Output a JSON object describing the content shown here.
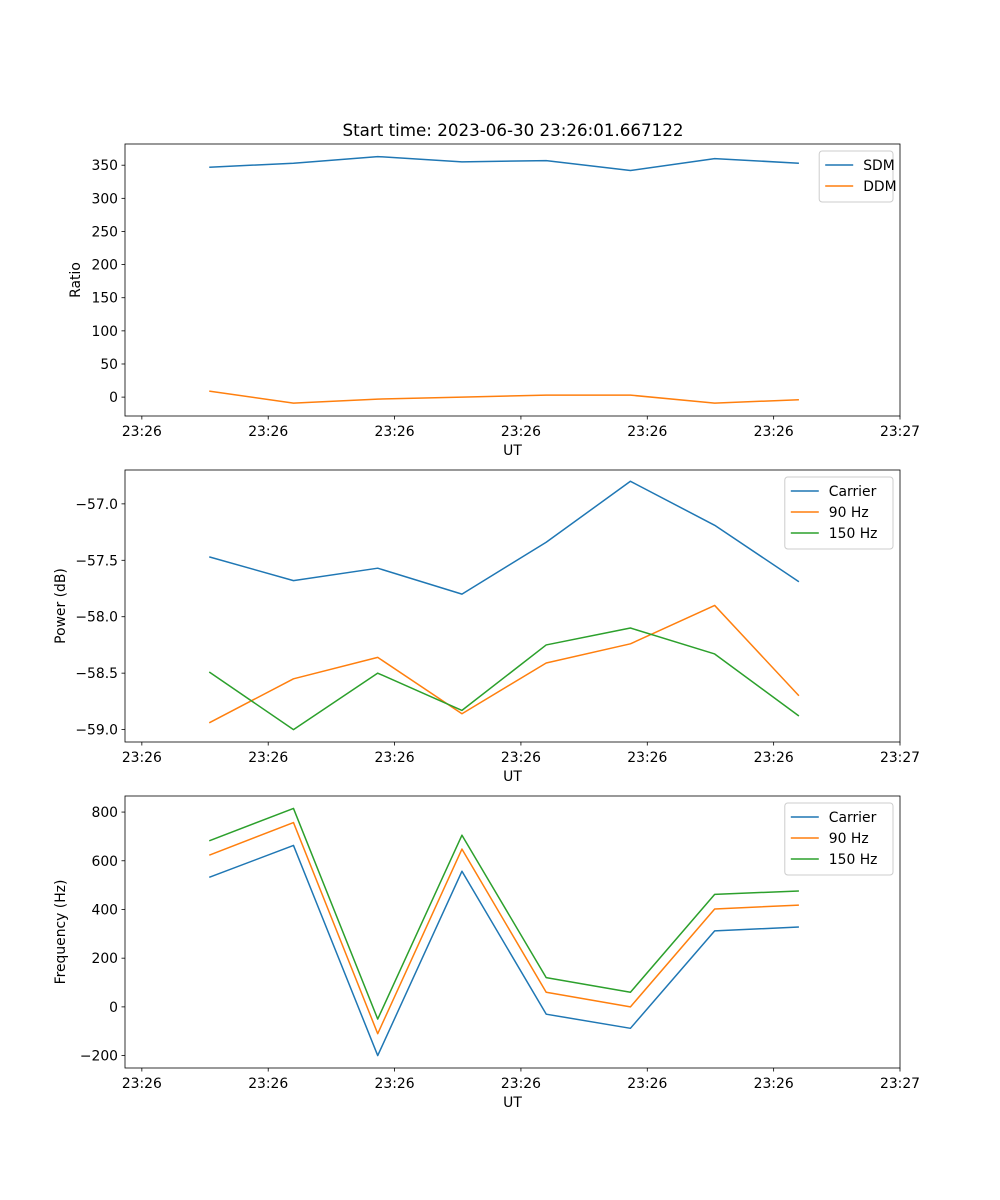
{
  "figure": {
    "title": "Start time: 2023-06-30 23:26:01.667122"
  },
  "chart_data": [
    {
      "type": "line",
      "title": "Start time: 2023-06-30 23:26:01.667122",
      "xlabel": "UT",
      "ylabel": "Ratio",
      "x_tick_labels": [
        "23:26",
        "23:26",
        "23:26",
        "23:26",
        "23:26",
        "23:26",
        "23:27"
      ],
      "y_ticks": [
        0,
        50,
        100,
        150,
        200,
        250,
        300,
        350
      ],
      "y_tick_labels": [
        "0",
        "50",
        "100",
        "150",
        "200",
        "250",
        "300",
        "350"
      ],
      "ylim": [
        -28.5,
        382
      ],
      "xlim": [
        0,
        9.2
      ],
      "x_tick_positions": [
        0.2,
        1.7,
        3.2,
        4.7,
        6.2,
        7.7,
        9.2
      ],
      "x": [
        1,
        2,
        3,
        4,
        5,
        6,
        7,
        8
      ],
      "legend_position": "upper right",
      "series": [
        {
          "name": "SDM",
          "color": "#1f77b4",
          "values": [
            347,
            353,
            363,
            355,
            357,
            342,
            360,
            353
          ]
        },
        {
          "name": "DDM",
          "color": "#ff7f0e",
          "values": [
            9,
            -9,
            -3,
            0,
            3,
            3,
            -9,
            -4
          ]
        }
      ]
    },
    {
      "type": "line",
      "xlabel": "UT",
      "ylabel": "Power (dB)",
      "x_tick_labels": [
        "23:26",
        "23:26",
        "23:26",
        "23:26",
        "23:26",
        "23:26",
        "23:27"
      ],
      "y_ticks": [
        -59.0,
        -58.5,
        -58.0,
        -57.5,
        -57.0
      ],
      "y_tick_labels": [
        "−59.0",
        "−58.5",
        "−58.0",
        "−57.5",
        "−57.0"
      ],
      "ylim": [
        -59.11,
        -56.7
      ],
      "xlim": [
        0,
        9.2
      ],
      "x_tick_positions": [
        0.2,
        1.7,
        3.2,
        4.7,
        6.2,
        7.7,
        9.2
      ],
      "x": [
        1,
        2,
        3,
        4,
        5,
        6,
        7,
        8
      ],
      "legend_position": "upper right",
      "series": [
        {
          "name": "Carrier",
          "color": "#1f77b4",
          "values": [
            -57.47,
            -57.68,
            -57.57,
            -57.8,
            -57.34,
            -56.8,
            -57.19,
            -57.69
          ]
        },
        {
          "name": "90 Hz",
          "color": "#ff7f0e",
          "values": [
            -58.94,
            -58.55,
            -58.36,
            -58.86,
            -58.41,
            -58.24,
            -57.9,
            -58.7
          ]
        },
        {
          "name": "150 Hz",
          "color": "#2ca02c",
          "values": [
            -58.49,
            -59.0,
            -58.5,
            -58.83,
            -58.25,
            -58.1,
            -58.33,
            -58.88
          ]
        }
      ]
    },
    {
      "type": "line",
      "xlabel": "UT",
      "ylabel": "Frequency (Hz)",
      "x_tick_labels": [
        "23:26",
        "23:26",
        "23:26",
        "23:26",
        "23:26",
        "23:26",
        "23:27"
      ],
      "y_ticks": [
        -200,
        0,
        200,
        400,
        600,
        800
      ],
      "y_tick_labels": [
        "−200",
        "0",
        "200",
        "400",
        "600",
        "800"
      ],
      "ylim": [
        -251,
        866
      ],
      "xlim": [
        0,
        9.2
      ],
      "x_tick_positions": [
        0.2,
        1.7,
        3.2,
        4.7,
        6.2,
        7.7,
        9.2
      ],
      "x": [
        1,
        2,
        3,
        4,
        5,
        6,
        7,
        8
      ],
      "legend_position": "upper right",
      "series": [
        {
          "name": "Carrier",
          "color": "#1f77b4",
          "values": [
            532,
            663,
            -200,
            557,
            -30,
            -88,
            312,
            328
          ]
        },
        {
          "name": "90 Hz",
          "color": "#ff7f0e",
          "values": [
            623,
            757,
            -110,
            648,
            60,
            0,
            402,
            418
          ]
        },
        {
          "name": "150 Hz",
          "color": "#2ca02c",
          "values": [
            682,
            815,
            -50,
            705,
            120,
            60,
            462,
            476
          ]
        }
      ]
    }
  ]
}
